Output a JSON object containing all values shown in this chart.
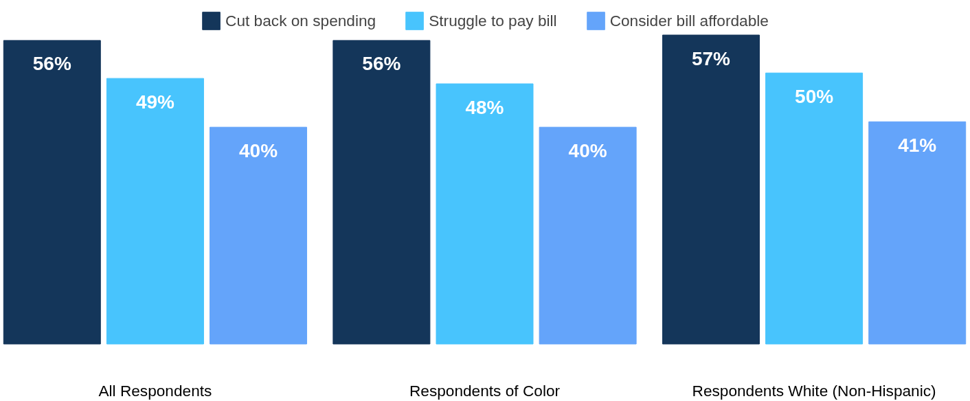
{
  "chart_data": {
    "type": "bar",
    "categories": [
      "All Respondents",
      "Respondents of Color",
      "Respondents White (Non-Hispanic)"
    ],
    "series": [
      {
        "name": "Cut back on spending",
        "color": "#14365a",
        "values": [
          56,
          56,
          57
        ],
        "value_labels": [
          "56%",
          "56%",
          "57%"
        ]
      },
      {
        "name": "Struggle to pay bill",
        "color": "#48c4fd",
        "values": [
          49,
          48,
          50
        ],
        "value_labels": [
          "49%",
          "48%",
          "50%"
        ]
      },
      {
        "name": "Consider bill affordable",
        "color": "#64a4fa",
        "values": [
          40,
          40,
          41
        ],
        "value_labels": [
          "40%",
          "40%",
          "41%"
        ]
      }
    ],
    "tick_labels": "x",
    "grid": false,
    "legend": "top"
  }
}
